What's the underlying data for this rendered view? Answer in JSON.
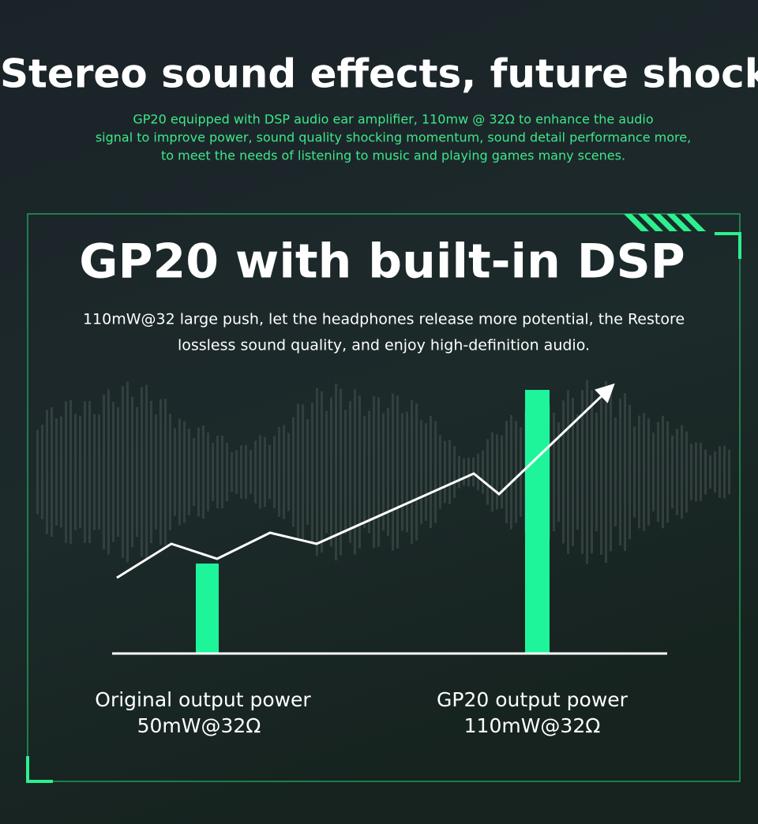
{
  "header": {
    "title": "Stereo sound effects, future shock",
    "description": [
      "GP20 equipped with DSP audio ear amplifier, 110mw @ 32Ω to enhance the audio",
      "signal to improve power, sound quality shocking momentum, sound detail performance more,",
      "to meet the needs of listening to music and playing games many scenes."
    ]
  },
  "panel": {
    "title": "GP20 with built-in DSP",
    "description": [
      "110mW@32 large push, let the headphones release more potential, the Restore",
      "lossless sound quality, and enjoy high-definition audio."
    ],
    "items": [
      {
        "name": "Original output power",
        "spec": "50mW@32Ω"
      },
      {
        "name": "GP20 output power",
        "spec": "110mW@32Ω"
      }
    ]
  }
}
